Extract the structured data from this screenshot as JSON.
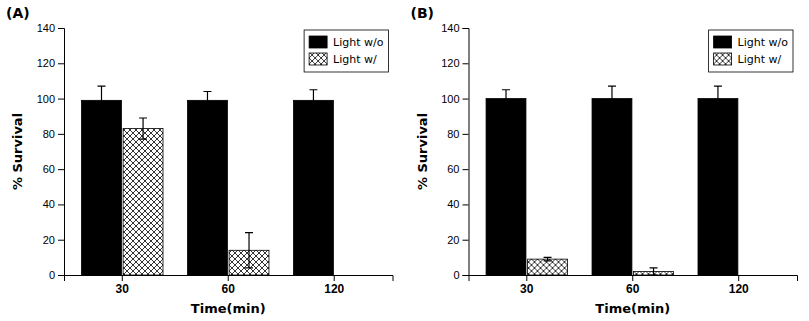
{
  "chart_data": [
    {
      "type": "bar",
      "title": "(A)",
      "categories": [
        "30",
        "60",
        "120"
      ],
      "series": [
        {
          "name": "Light w/o",
          "color": "#000000",
          "values": [
            99,
            99,
            99
          ],
          "errors": [
            8,
            5,
            6
          ]
        },
        {
          "name": "Light w/",
          "color": "#ffffff",
          "values": [
            83,
            14,
            null
          ],
          "errors": [
            6,
            10,
            null
          ]
        }
      ],
      "xlabel": "Time(min)",
      "ylabel": "% Survival",
      "ylim": [
        0,
        140
      ],
      "yticks": [
        0,
        20,
        40,
        60,
        80,
        100,
        120,
        140
      ],
      "legend": "upper-right"
    },
    {
      "type": "bar",
      "title": "(B)",
      "categories": [
        "30",
        "60",
        "120"
      ],
      "series": [
        {
          "name": "Light w/o",
          "color": "#000000",
          "values": [
            100,
            100,
            100
          ],
          "errors": [
            5,
            7,
            7
          ]
        },
        {
          "name": "Light w/",
          "color": "#ffffff",
          "values": [
            9,
            2,
            null
          ],
          "errors": [
            1,
            2,
            null
          ]
        }
      ],
      "xlabel": "Time(min)",
      "ylabel": "% Survival",
      "ylim": [
        0,
        140
      ],
      "yticks": [
        0,
        20,
        40,
        60,
        80,
        100,
        120,
        140
      ],
      "legend": "upper-right"
    }
  ]
}
